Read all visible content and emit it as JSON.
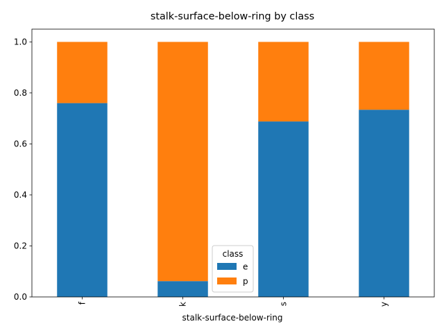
{
  "chart_data": {
    "type": "bar",
    "stacked": true,
    "title": "stalk-surface-below-ring by class",
    "xlabel": "stalk-surface-below-ring",
    "ylabel": "",
    "categories": [
      "f",
      "k",
      "s",
      "y"
    ],
    "series": [
      {
        "name": "e",
        "color": "#1f77b4",
        "values": [
          0.76,
          0.062,
          0.688,
          0.734
        ]
      },
      {
        "name": "p",
        "color": "#ff7f0e",
        "values": [
          0.24,
          0.938,
          0.312,
          0.266
        ]
      }
    ],
    "ylim": [
      0,
      1.05
    ],
    "yticks": [
      "0.0",
      "0.2",
      "0.4",
      "0.6",
      "0.8",
      "1.0"
    ],
    "legend": {
      "title": "class",
      "placement": "bottom-center"
    },
    "grid": false
  }
}
